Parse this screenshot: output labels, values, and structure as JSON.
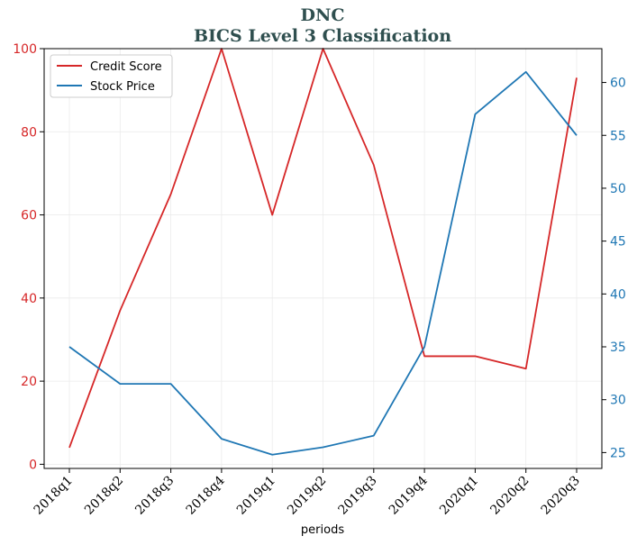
{
  "chart_data": {
    "type": "line",
    "title": "DNC",
    "subtitle": "BICS Level 3 Classification",
    "xlabel": "periods",
    "categories": [
      "2018q1",
      "2018q2",
      "2018q3",
      "2018q4",
      "2019q1",
      "2019q2",
      "2019q3",
      "2019q4",
      "2020q1",
      "2020q2",
      "2020q3"
    ],
    "series": [
      {
        "name": "Credit Score",
        "axis": "left",
        "color": "#d62728",
        "values": [
          4,
          37,
          65,
          100,
          60,
          100,
          72,
          26,
          26,
          23,
          93
        ]
      },
      {
        "name": "Stock Price",
        "axis": "right",
        "color": "#1f77b4",
        "values": [
          35,
          31.5,
          31.5,
          26.3,
          24.8,
          25.5,
          26.6,
          35,
          57,
          61,
          55
        ]
      }
    ],
    "y_left": {
      "ylim": [
        -1,
        100
      ],
      "ticks": [
        0,
        20,
        40,
        60,
        80,
        100
      ],
      "color": "#d62728"
    },
    "y_right": {
      "ylim": [
        23.5,
        63.2
      ],
      "ticks": [
        25,
        30,
        35,
        40,
        45,
        50,
        55,
        60
      ],
      "color": "#1f77b4"
    },
    "grid": true,
    "legend_position": "top-left"
  }
}
